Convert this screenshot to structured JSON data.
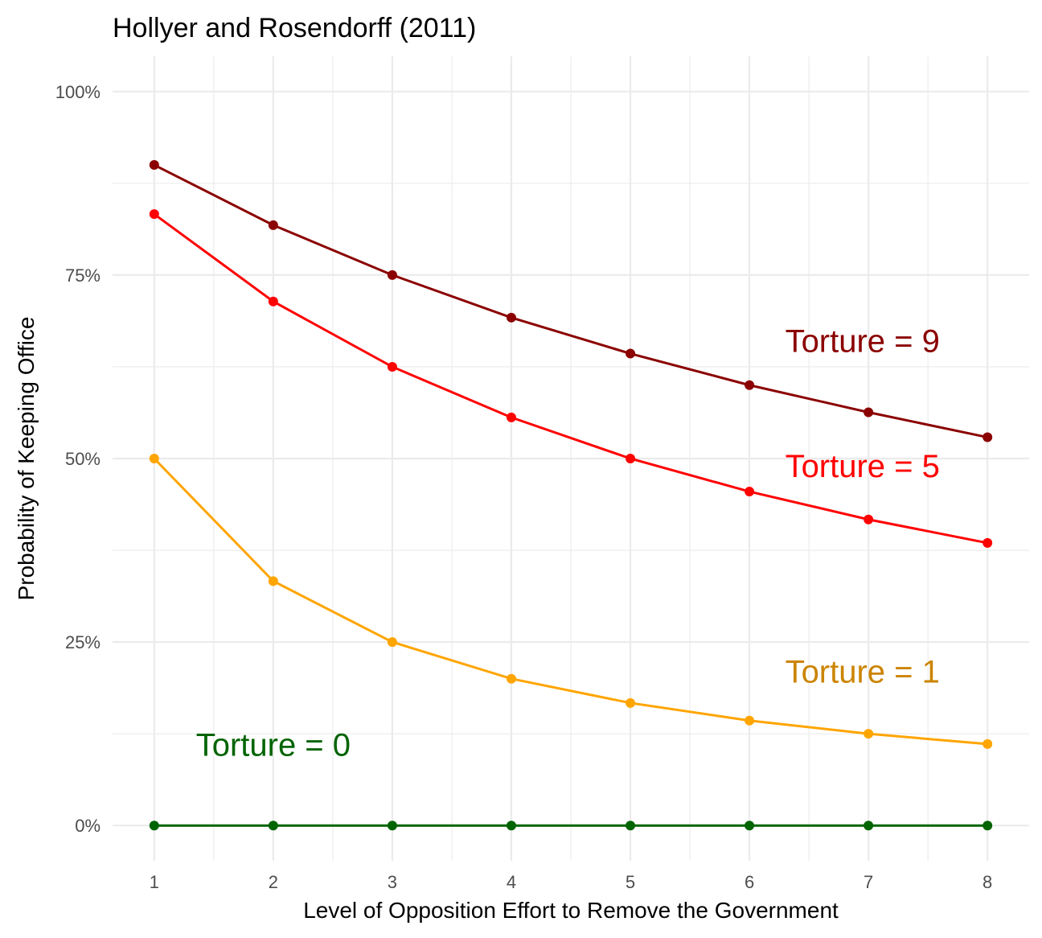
{
  "chart_data": {
    "type": "line",
    "title": "Hollyer and Rosendorff (2011)",
    "xlabel": "Level of Opposition Effort to Remove the Government",
    "ylabel": "Probability of Keeping Office",
    "x": [
      1,
      2,
      3,
      4,
      5,
      6,
      7,
      8
    ],
    "xlim": [
      0.65,
      8.35
    ],
    "ylim": [
      -0.048,
      1.048
    ],
    "x_ticks": [
      "1",
      "2",
      "3",
      "4",
      "5",
      "6",
      "7",
      "8"
    ],
    "y_ticks": [
      {
        "value": 0,
        "label": "0%"
      },
      {
        "value": 0.25,
        "label": "25%"
      },
      {
        "value": 0.5,
        "label": "50%"
      },
      {
        "value": 0.75,
        "label": "75%"
      },
      {
        "value": 1,
        "label": "100%"
      }
    ],
    "grid": true,
    "legend": "none",
    "series": [
      {
        "name": "Torture = 9",
        "color": "#8B0000",
        "label_color": "#8B0000",
        "values": [
          0.9,
          0.818,
          0.75,
          0.692,
          0.643,
          0.6,
          0.563,
          0.529
        ],
        "label_at": [
          6.95,
          0.645
        ]
      },
      {
        "name": "Torture = 5",
        "color": "#FF0000",
        "label_color": "#FF0000",
        "values": [
          0.833,
          0.714,
          0.625,
          0.556,
          0.5,
          0.455,
          0.417,
          0.385
        ],
        "label_at": [
          6.95,
          0.475
        ]
      },
      {
        "name": "Torture = 1",
        "color": "#FFA500",
        "label_color": "#CC8400",
        "values": [
          0.5,
          0.333,
          0.25,
          0.2,
          0.167,
          0.143,
          0.125,
          0.111
        ],
        "label_at": [
          6.95,
          0.195
        ]
      },
      {
        "name": "Torture = 0",
        "color": "#006400",
        "label_color": "#006400",
        "values": [
          0,
          0,
          0,
          0,
          0,
          0,
          0,
          0
        ],
        "label_at": [
          2.0,
          0.095
        ]
      }
    ]
  }
}
